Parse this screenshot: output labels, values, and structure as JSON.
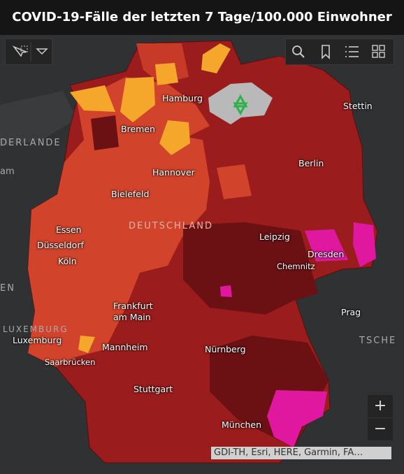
{
  "header": {
    "title": "COVID-19-Fälle der letzten 7 Tage/100.000 Einwohner"
  },
  "map": {
    "cities": [
      "Hamburg",
      "Stettin",
      "Bremen",
      "Berlin",
      "Hannover",
      "Bielefeld",
      "Leipzig",
      "Essen",
      "Düsseldorf",
      "Dresden",
      "Köln",
      "Chemnitz",
      "Prag",
      "Frankfurt am Main",
      "Luxemburg",
      "Mannheim",
      "Nürnberg",
      "Saarbrücken",
      "Stuttgart",
      "München"
    ],
    "countries": [
      "DERLANDE",
      "am",
      "DEUTSCHLAND",
      "EN",
      "LUXEMBURG",
      "TSCHE"
    ],
    "attribution": "GDI-TH, Esri, HERE, Garmin, FA…",
    "zoom_in": "+",
    "zoom_out": "−"
  }
}
